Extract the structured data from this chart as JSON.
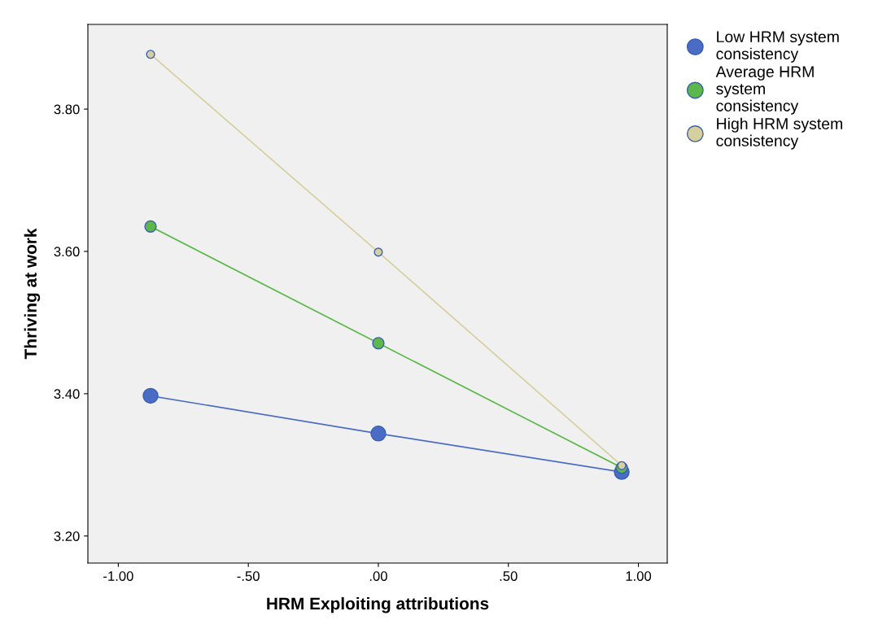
{
  "chart_data": {
    "type": "line",
    "xlabel": "HRM Exploiting attributions",
    "ylabel": "Thriving at work",
    "x": [
      -0.876,
      0.0,
      0.936
    ],
    "series": [
      {
        "name": "Low HRM system\nconsistency",
        "color": "#4a6cc4",
        "values": [
          3.397,
          3.344,
          3.29
        ]
      },
      {
        "name": "Average HRM\nsystem\nconsistency",
        "color": "#5cb84a",
        "values": [
          3.635,
          3.471,
          3.296
        ]
      },
      {
        "name": "High HRM system\nconsistency",
        "color": "#d6cf9e",
        "values": [
          3.877,
          3.599,
          3.299
        ]
      }
    ],
    "xlim": [
      -1.117,
      1.111
    ],
    "ylim": [
      3.162,
      3.919
    ],
    "xticks": [
      {
        "value": -1.0,
        "label": "-1.00"
      },
      {
        "value": -0.5,
        "label": "-.50"
      },
      {
        "value": 0.0,
        "label": ".00"
      },
      {
        "value": 0.5,
        "label": ".50"
      },
      {
        "value": 1.0,
        "label": "1.00"
      }
    ],
    "yticks": [
      {
        "value": 3.2,
        "label": "3.20"
      },
      {
        "value": 3.4,
        "label": "3.40"
      },
      {
        "value": 3.6,
        "label": "3.60"
      },
      {
        "value": 3.8,
        "label": "3.80"
      }
    ],
    "marker": "circle",
    "line_style": "solid",
    "grid": false,
    "legend": "top right"
  }
}
